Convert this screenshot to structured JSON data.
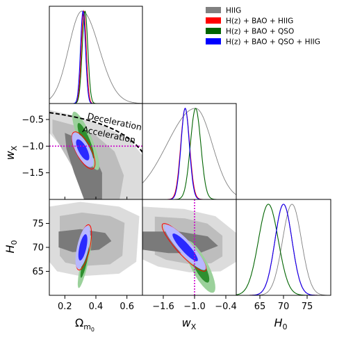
{
  "chart_data": {
    "type": "triangle-corner",
    "colors": {
      "HIIG": "#808080",
      "H(z) + BAO + HIIG": "#ff0000",
      "H(z) + BAO + QSO": "#006400",
      "H(z) + BAO + QSO + HIIG": "#0000ff",
      "reference_line": "#cc00cc",
      "boundary_line": "#000000"
    },
    "legend": {
      "placement": "top-right",
      "entries": [
        "HIIG",
        "H(z) + BAO + HIIG",
        "H(z) + BAO + QSO",
        "H(z) + BAO + QSO + HIIG"
      ]
    },
    "parameters": [
      {
        "key": "om",
        "ranges": [
          0.1,
          0.7
        ],
        "ticks": [
          0.2,
          0.4,
          0.6
        ],
        "tick_labels": [
          "0.2",
          "0.4",
          "0.6"
        ],
        "label_base": "Ω",
        "label_sub": "m",
        "label_subsub": "0"
      },
      {
        "key": "wx",
        "ranges": [
          -2.0,
          -0.2
        ],
        "ticks": [
          -1.5,
          -1.0,
          -0.5
        ],
        "tick_labels": [
          "−1.5",
          "−1.0",
          "−0.5"
        ],
        "xticks": [
          -1.6,
          -1.0,
          -0.4
        ],
        "xtick_labels": [
          "−1.6",
          "−1.0",
          "−0.4"
        ],
        "label_base": "w",
        "label_sub": "X"
      },
      {
        "key": "h0",
        "ranges": [
          60,
          80
        ],
        "ticks": [
          65,
          70,
          75
        ],
        "tick_labels": [
          "65",
          "70",
          "75"
        ],
        "label_base": "H",
        "label_sub": "0"
      }
    ],
    "marginals": {
      "om": [
        {
          "name": "HIIG",
          "mean": 0.31,
          "sd": 0.1,
          "peak": 0.95
        },
        {
          "name": "H(z) + BAO + HIIG",
          "mean": 0.322,
          "sd": 0.016,
          "peak": 0.95
        },
        {
          "name": "H(z) + BAO + QSO",
          "mean": 0.33,
          "sd": 0.018,
          "peak": 0.95
        },
        {
          "name": "H(z) + BAO + QSO + HIIG",
          "mean": 0.317,
          "sd": 0.016,
          "peak": 0.95
        }
      ],
      "wx": [
        {
          "name": "HIIG",
          "mean": -0.98,
          "sd": 0.4,
          "peak": 0.95
        },
        {
          "name": "H(z) + BAO + HIIG",
          "mean": -1.18,
          "sd": 0.085,
          "peak": 0.95
        },
        {
          "name": "H(z) + BAO + QSO",
          "mean": -0.98,
          "sd": 0.1,
          "peak": 0.95
        },
        {
          "name": "H(z) + BAO + QSO + HIIG",
          "mean": -1.18,
          "sd": 0.08,
          "peak": 0.95
        }
      ],
      "h0": [
        {
          "name": "HIIG",
          "mean": 71.8,
          "sd": 2.0,
          "peak": 0.95
        },
        {
          "name": "H(z) + BAO + HIIG",
          "mean": 70.0,
          "sd": 1.8,
          "peak": 0.95
        },
        {
          "name": "H(z) + BAO + QSO",
          "mean": 66.8,
          "sd": 2.1,
          "peak": 0.95
        },
        {
          "name": "H(z) + BAO + QSO + HIIG",
          "mean": 70.0,
          "sd": 1.8,
          "peak": 0.95
        }
      ]
    },
    "reference_lines": {
      "wx": -1.0
    },
    "boundary_annotation": {
      "upper": "Deceleration",
      "lower": "Acceleration"
    }
  }
}
